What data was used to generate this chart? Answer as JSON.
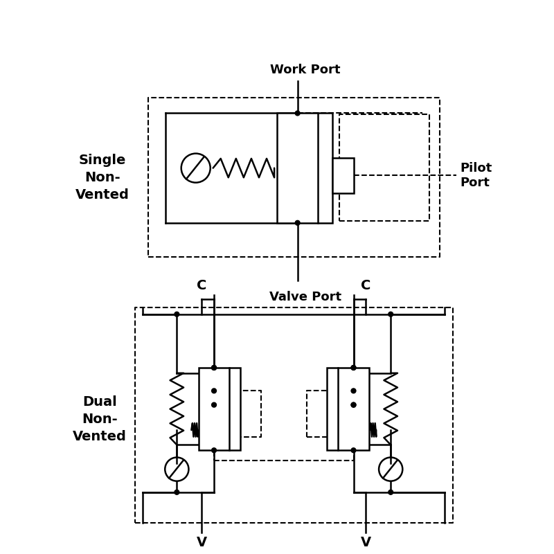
{
  "bg_color": "#ffffff",
  "line_color": "#000000",
  "text_color": "#000000",
  "title1": "Single\nNon-\nVented",
  "title2": "Dual\nNon-\nVented",
  "label_work_port": "Work Port",
  "label_valve_port": "Valve Port",
  "label_pilot_port": "Pilot\nPort",
  "label_C1": "C",
  "label_C2": "C",
  "label_V1": "V",
  "label_V2": "V",
  "lw": 1.8,
  "dlw": 1.5,
  "dot_r": 0.035
}
